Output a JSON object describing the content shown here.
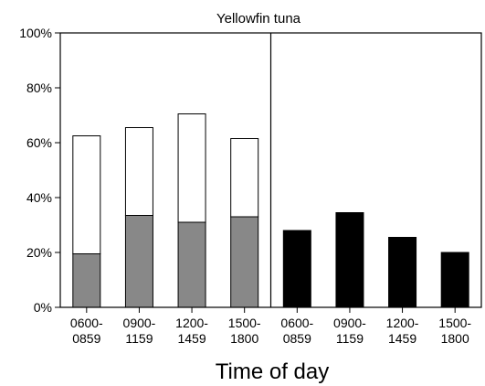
{
  "chart_data": {
    "type": "bar",
    "title": "Yellowfin tuna",
    "xlabel": "Time of day",
    "ylabel": "",
    "ylim": [
      0,
      100
    ],
    "yticks": [
      "0%",
      "20%",
      "40%",
      "60%",
      "80%",
      "100%"
    ],
    "grid": false,
    "categories": [
      [
        "0600-",
        "0859"
      ],
      [
        "0900-",
        "1159"
      ],
      [
        "1200-",
        "1459"
      ],
      [
        "1500-",
        "1800"
      ],
      [
        "0600-",
        "0859"
      ],
      [
        "0900-",
        "1159"
      ],
      [
        "1200-",
        "1459"
      ],
      [
        "1500-",
        "1800"
      ]
    ],
    "panels": [
      {
        "stacked": true,
        "series": [
          {
            "color": "#888888",
            "values": [
              19.5,
              33.5,
              31,
              33
            ]
          },
          {
            "color": "#ffffff",
            "values": [
              43,
              32,
              39.5,
              28.5
            ]
          }
        ],
        "totals": [
          62.5,
          65.5,
          70.5,
          61.5
        ]
      },
      {
        "stacked": false,
        "series": [
          {
            "color": "#000000",
            "values": [
              28,
              34.5,
              25.5,
              20
            ]
          }
        ]
      }
    ]
  }
}
